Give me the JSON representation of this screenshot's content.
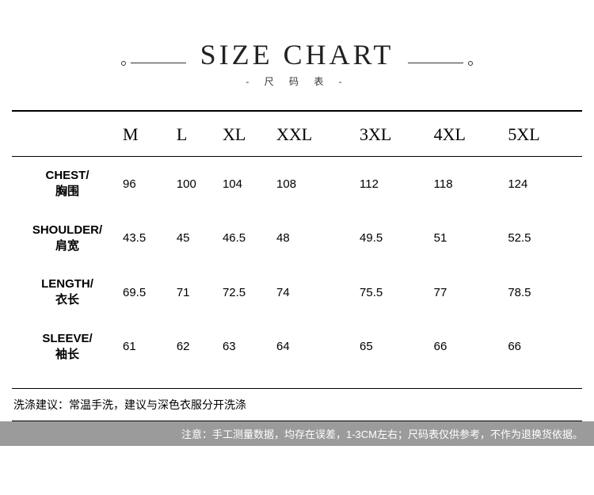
{
  "header": {
    "title": "SIZE CHART",
    "subtitle": "- 尺 码 表 -"
  },
  "table": {
    "columns": [
      "M",
      "L",
      "XL",
      "XXL",
      "3XL",
      "4XL",
      "5XL"
    ],
    "rows": [
      {
        "label_en": "CHEST/",
        "label_cn": "胸围",
        "values": [
          "96",
          "100",
          "104",
          "108",
          "112",
          "118",
          "124"
        ]
      },
      {
        "label_en": "SHOULDER/",
        "label_cn": "肩宽",
        "values": [
          "43.5",
          "45",
          "46.5",
          "48",
          "49.5",
          "51",
          "52.5"
        ]
      },
      {
        "label_en": "LENGTH/",
        "label_cn": "衣长",
        "values": [
          "69.5",
          "71",
          "72.5",
          "74",
          "75.5",
          "77",
          "78.5"
        ]
      },
      {
        "label_en": "SLEEVE/",
        "label_cn": "袖长",
        "values": [
          "61",
          "62",
          "63",
          "64",
          "65",
          "66",
          "66"
        ]
      }
    ]
  },
  "wash_note": "洗涤建议：常温手洗，建议与深色衣服分开洗涤",
  "disclaimer": "注意：手工测量数据，均存在误差，1-3CM左右；尺码表仅供参考，不作为退换货依据。",
  "style": {
    "page_bg": "#ffffff",
    "text_color": "#000000",
    "rule_color": "#000000",
    "disclaimer_bg": "#9b9b9b",
    "disclaimer_text": "#ffffff",
    "title_fontsize": 36,
    "th_fontsize": 22,
    "cell_fontsize": 15
  }
}
